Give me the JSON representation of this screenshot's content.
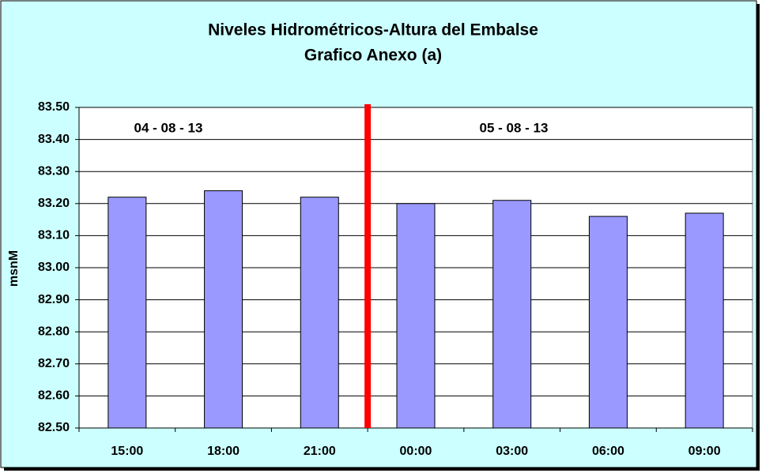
{
  "chart_data": {
    "type": "bar",
    "title": "Niveles Hidrométricos-Altura del Embalse",
    "subtitle": "Grafico Anexo (a)",
    "y_label": "msnM",
    "annotations": [
      "04 - 08 - 13",
      "05 - 08 - 13"
    ],
    "categories": [
      "15:00",
      "18:00",
      "21:00",
      "00:00",
      "03:00",
      "06:00",
      "09:00"
    ],
    "values": [
      83.22,
      83.24,
      83.22,
      83.2,
      83.21,
      83.16,
      83.17
    ],
    "color": "#9999ff",
    "ylim": [
      82.5,
      83.5
    ],
    "yticks": [
      {
        "value": 82.5,
        "label": "82.50"
      },
      {
        "value": 82.6,
        "label": "82.60"
      },
      {
        "value": 82.7,
        "label": "82.70"
      },
      {
        "value": 82.8,
        "label": "82.80"
      },
      {
        "value": 82.9,
        "label": "82.90"
      },
      {
        "value": 83.0,
        "label": "83.00"
      },
      {
        "value": 83.1,
        "label": "83.10"
      },
      {
        "value": 83.2,
        "label": "83.20"
      },
      {
        "value": 83.3,
        "label": "83.30"
      },
      {
        "value": 83.4,
        "label": "83.40"
      },
      {
        "value": 83.5,
        "label": "83.50"
      }
    ],
    "grid": true
  }
}
